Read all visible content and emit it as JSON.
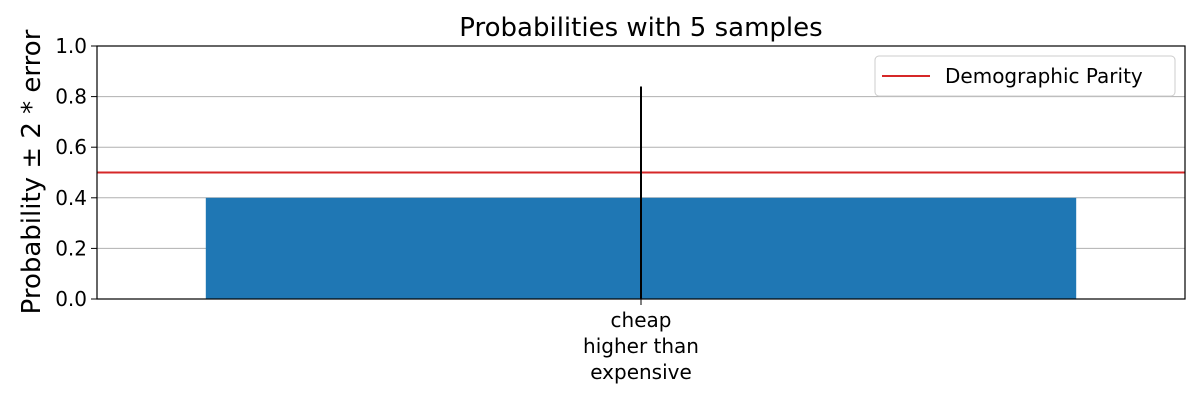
{
  "chart_data": {
    "type": "bar",
    "title": "Probabilities with 5 samples",
    "xlabel": "",
    "ylabel": "Probability ± 2 * error",
    "ylim": [
      0,
      1.0
    ],
    "yticks": [
      0.0,
      0.2,
      0.4,
      0.6,
      0.8,
      1.0
    ],
    "ytick_labels": [
      "0.0",
      "0.2",
      "0.4",
      "0.6",
      "0.8",
      "1.0"
    ],
    "categories": [
      [
        "cheap",
        "higher than",
        "expensive"
      ]
    ],
    "values": [
      0.4
    ],
    "error": [
      0.44
    ],
    "reference_line": {
      "name": "Demographic Parity",
      "value": 0.5,
      "color": "#d62728"
    },
    "grid": "y",
    "legend": "top-right",
    "colors": {
      "bar": "#1f77b4",
      "error_bar": "#000000",
      "grid": "#b0b0b0"
    }
  }
}
